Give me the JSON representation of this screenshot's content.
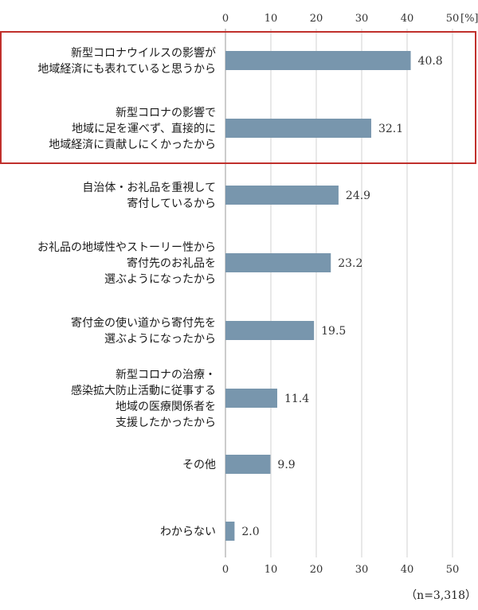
{
  "chart_data": {
    "type": "bar",
    "orientation": "horizontal",
    "categories": [
      [
        "新型コロナウイルスの影響が",
        "地域経済にも表れていると思うから"
      ],
      [
        "新型コロナの影響で",
        "地域に足を運べず、直接的に",
        "地域経済に貢献しにくかったから"
      ],
      [
        "自治体・お礼品を重視して",
        "寄付しているから"
      ],
      [
        "お礼品の地域性やストーリー性から",
        "寄付先のお礼品を",
        "選ぶようになったから"
      ],
      [
        "寄付金の使い道から寄付先を",
        "選ぶようになったから"
      ],
      [
        "新型コロナの治療・",
        "感染拡大防止活動に従事する",
        "地域の医療関係者を",
        "支援したかったから"
      ],
      [
        "その他"
      ],
      [
        "わからない"
      ]
    ],
    "values": [
      40.8,
      32.1,
      24.9,
      23.2,
      19.5,
      11.4,
      9.9,
      2.0
    ],
    "value_labels": [
      "40.8",
      "32.1",
      "24.9",
      "23.2",
      "19.5",
      "11.4",
      "9.9",
      "2.0"
    ],
    "xlim": [
      0,
      50
    ],
    "x_ticks": [
      0,
      10,
      20,
      30,
      40,
      50
    ],
    "x_tick_labels": [
      "0",
      "10",
      "20",
      "30",
      "40",
      "50"
    ],
    "unit": "[%]",
    "grid": true,
    "highlight": {
      "category_indices": [
        0,
        1
      ],
      "color": "#c0302c"
    },
    "bar_color": "#7896ad",
    "note": "（n=3,318）"
  }
}
